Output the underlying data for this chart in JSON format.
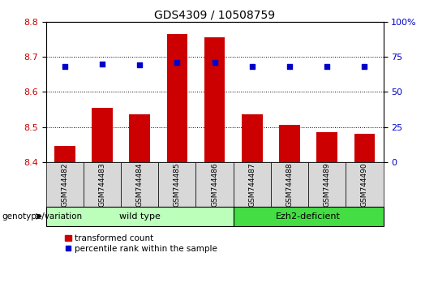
{
  "title": "GDS4309 / 10508759",
  "samples": [
    "GSM744482",
    "GSM744483",
    "GSM744484",
    "GSM744485",
    "GSM744486",
    "GSM744487",
    "GSM744488",
    "GSM744489",
    "GSM744490"
  ],
  "transformed_count": [
    8.445,
    8.555,
    8.535,
    8.765,
    8.755,
    8.535,
    8.505,
    8.485,
    8.48
  ],
  "percentile_rank": [
    68,
    70,
    69,
    71,
    71,
    68,
    68,
    68,
    68
  ],
  "ylim_left": [
    8.4,
    8.8
  ],
  "ylim_right": [
    0,
    100
  ],
  "yticks_left": [
    8.4,
    8.5,
    8.6,
    8.7,
    8.8
  ],
  "yticks_right": [
    0,
    25,
    50,
    75,
    100
  ],
  "bar_color": "#cc0000",
  "dot_color": "#0000cc",
  "n_wild_type": 5,
  "n_ezh2": 4,
  "wild_type_label": "wild type",
  "ezh2_label": "Ezh2-deficient",
  "genotype_label": "genotype/variation",
  "legend_bar_label": "transformed count",
  "legend_dot_label": "percentile rank within the sample",
  "wild_type_color": "#bbffbb",
  "ezh2_color": "#44dd44",
  "tick_label_color_left": "#cc0000",
  "tick_label_color_right": "#0000cc",
  "ticklabel_bg_color": "#d8d8d8",
  "grid_color": "#000000",
  "plot_bg_color": "#ffffff"
}
